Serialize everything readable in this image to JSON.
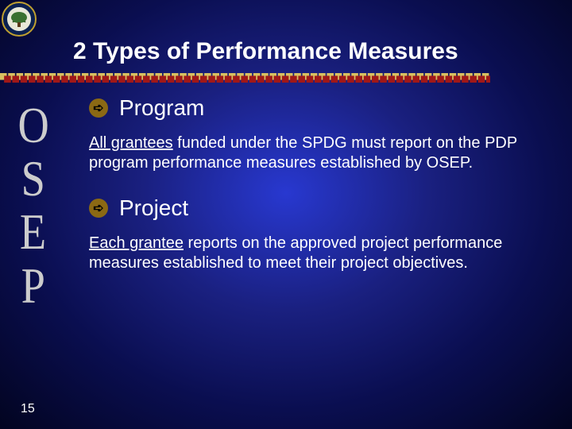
{
  "title": "2 Types of Performance Measures",
  "osep_letters": [
    "O",
    "S",
    "E",
    "P"
  ],
  "sections": [
    {
      "heading": "Program",
      "underlined": "All grantees",
      "rest": " funded under the SPDG must report on the PDP program performance measures established by OSEP."
    },
    {
      "heading": "Project",
      "underlined": "Each grantee",
      "rest": " reports on the approved project performance measures established to meet their project objectives."
    }
  ],
  "page_number": "15",
  "colors": {
    "divider1": "#d8c060",
    "divider2": "#a01818",
    "arrow_bg": "#8b6914"
  },
  "divider_square_size": 10,
  "divider_count": 60
}
